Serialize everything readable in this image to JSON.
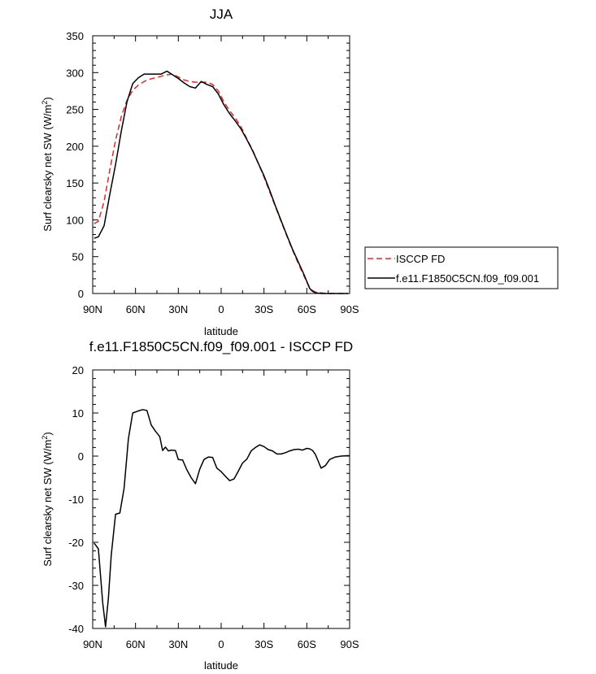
{
  "chart_data": [
    {
      "type": "line",
      "title": "JJA",
      "xlabel": "latitude",
      "ylabel": "Surf clearsky net SW (W/m",
      "ylabel_sup": "2",
      "ylabel_close": ")",
      "xlim": [
        90,
        -90
      ],
      "ylim": [
        0,
        350
      ],
      "x_ticks": [
        90,
        60,
        30,
        0,
        -30,
        -60,
        -90
      ],
      "x_tick_labels": [
        "90N",
        "60N",
        "30N",
        "0",
        "30S",
        "60S",
        "90S"
      ],
      "y_ticks": [
        0,
        50,
        100,
        150,
        200,
        250,
        300,
        350
      ],
      "y_tick_labels": [
        "0",
        "50",
        "100",
        "150",
        "200",
        "250",
        "300",
        "350"
      ],
      "grid": false,
      "legend_position": "right, outside the plot area",
      "series": [
        {
          "name": "ISCCP FD",
          "color": "#e8262a",
          "dash": "dashed",
          "x": [
            89,
            86,
            82,
            78,
            74,
            70,
            66,
            62,
            58,
            54,
            50,
            46,
            42,
            38,
            34,
            30,
            26,
            22,
            18,
            14,
            10,
            6,
            2,
            -2,
            -6,
            -10,
            -14,
            -18,
            -22,
            -26,
            -30,
            -34,
            -38,
            -42,
            -46,
            -50,
            -54,
            -58,
            -62,
            -64,
            -66,
            -70,
            -74,
            -78,
            -82,
            -86,
            -89
          ],
          "y": [
            95,
            98,
            125,
            168,
            208,
            240,
            262,
            276,
            283,
            288,
            291,
            293,
            295,
            297,
            298,
            294,
            290,
            288,
            287,
            287,
            287,
            284,
            275,
            260,
            248,
            238,
            226,
            210,
            195,
            177,
            158,
            138,
            118,
            98,
            78,
            59,
            41,
            24,
            8,
            4,
            2,
            1,
            0,
            0,
            0,
            0,
            0
          ]
        },
        {
          "name": "f.e11.F1850C5CN.f09_f09.001",
          "color": "#000000",
          "dash": "solid",
          "x": [
            89,
            86,
            82,
            78,
            74,
            70,
            66,
            62,
            58,
            54,
            50,
            46,
            42,
            38,
            34,
            30,
            26,
            22,
            18,
            14,
            10,
            6,
            2,
            -2,
            -6,
            -10,
            -14,
            -18,
            -22,
            -26,
            -30,
            -34,
            -38,
            -42,
            -46,
            -50,
            -54,
            -58,
            -62,
            -64,
            -66,
            -70,
            -74,
            -78,
            -82,
            -86,
            -89
          ],
          "y": [
            75,
            77,
            92,
            135,
            175,
            220,
            260,
            285,
            293,
            298,
            298,
            298,
            298,
            302,
            297,
            292,
            286,
            281,
            279,
            288,
            284,
            281,
            271,
            256,
            244,
            234,
            223,
            209,
            194,
            177,
            160,
            140,
            119,
            99,
            79,
            60,
            43,
            26,
            7,
            3,
            1,
            0,
            0,
            0,
            0,
            0,
            0
          ]
        }
      ]
    },
    {
      "type": "line",
      "title": "f.e11.F1850C5CN.f09_f09.001 - ISCCP FD",
      "xlabel": "latitude",
      "ylabel": "Surf clearsky net SW (W/m",
      "ylabel_sup": "2",
      "ylabel_close": ")",
      "xlim": [
        90,
        -90
      ],
      "ylim": [
        -40,
        20
      ],
      "x_ticks": [
        90,
        60,
        30,
        0,
        -30,
        -60,
        -90
      ],
      "x_tick_labels": [
        "90N",
        "60N",
        "30N",
        "0",
        "30S",
        "60S",
        "90S"
      ],
      "y_ticks": [
        -40,
        -30,
        -20,
        -10,
        0,
        10,
        20
      ],
      "y_tick_labels": [
        "-40",
        "-30",
        "-20",
        "-10",
        "0",
        "10",
        "20"
      ],
      "grid": false,
      "series": [
        {
          "color": "#000000",
          "dash": "solid",
          "x": [
            89,
            86,
            83,
            81,
            79,
            77,
            74,
            71,
            68,
            65,
            62,
            58,
            55,
            52,
            49,
            46,
            43,
            41,
            39,
            37,
            35,
            32,
            30,
            27,
            24,
            21,
            18,
            15,
            12,
            9,
            6,
            3,
            0,
            -3,
            -6,
            -9,
            -12,
            -15,
            -18,
            -21,
            -24,
            -27,
            -30,
            -33,
            -36,
            -39,
            -42,
            -45,
            -48,
            -51,
            -54,
            -57,
            -60,
            -62,
            -64,
            -66,
            -68,
            -70,
            -73,
            -76,
            -80,
            -84,
            -88,
            -90
          ],
          "y": [
            -20.2,
            -21.5,
            -34,
            -39.6,
            -33,
            -23,
            -13.5,
            -13.2,
            -7.5,
            4,
            10,
            10.5,
            10.8,
            10.6,
            7.2,
            5.8,
            4.5,
            1.3,
            2.1,
            1.2,
            1.4,
            1.3,
            -0.8,
            -0.9,
            -3.2,
            -5,
            -6.4,
            -3,
            -0.8,
            -0.2,
            -0.3,
            -2.8,
            -3.6,
            -4.7,
            -5.7,
            -5.3,
            -3.5,
            -1.6,
            -0.7,
            1.2,
            2,
            2.6,
            2.2,
            1.5,
            1.2,
            0.5,
            0.5,
            0.8,
            1.2,
            1.5,
            1.6,
            1.4,
            1.8,
            1.7,
            1.3,
            0.4,
            -1.2,
            -2.8,
            -2.2,
            -0.8,
            -0.2,
            0.0,
            0.1,
            0.1
          ]
        }
      ]
    }
  ]
}
